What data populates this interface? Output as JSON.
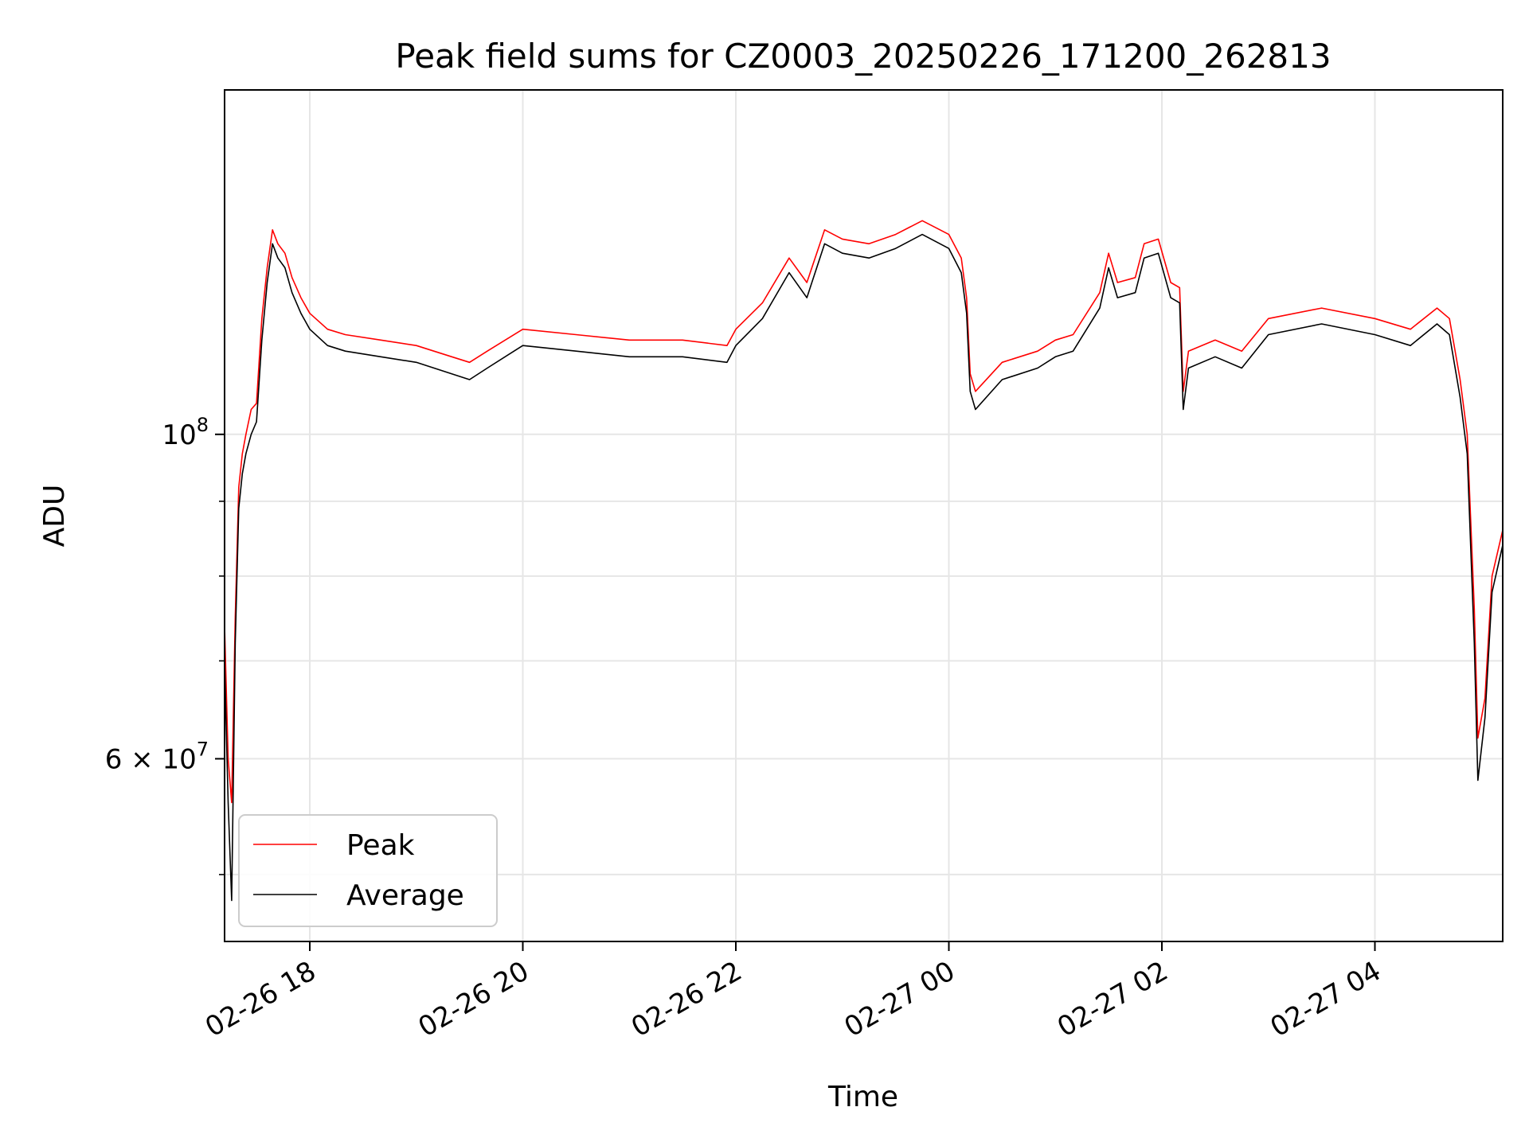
{
  "chart_data": {
    "type": "line",
    "title": "Peak field sums for CZ0003_20250226_171200_262813",
    "xlabel": "Time",
    "ylabel": "ADU",
    "yscale": "log",
    "grid": true,
    "legend_position": "lower-left",
    "xlim": [
      "2025-02-26 17:12",
      "2025-02-27 05:12"
    ],
    "ylim": [
      45000000,
      172000000
    ],
    "x_ticks": [
      {
        "t": "2025-02-26 18:00",
        "label": "02-26 18"
      },
      {
        "t": "2025-02-26 20:00",
        "label": "02-26 20"
      },
      {
        "t": "2025-02-26 22:00",
        "label": "02-26 22"
      },
      {
        "t": "2025-02-27 00:00",
        "label": "02-27 00"
      },
      {
        "t": "2025-02-27 02:00",
        "label": "02-27 02"
      },
      {
        "t": "2025-02-27 04:00",
        "label": "02-27 04"
      }
    ],
    "y_major_ticks": [
      {
        "v": 60000000,
        "mantissa": "6",
        "base": "10",
        "exp": "7"
      },
      {
        "v": 100000000,
        "mantissa": "",
        "base": "10",
        "exp": "8"
      }
    ],
    "y_minor_ticks": [
      50000000,
      70000000,
      80000000,
      90000000
    ],
    "series": [
      {
        "name": "Peak",
        "color": "#ff0000",
        "points": [
          [
            "2025-02-26 17:12",
            74000000
          ],
          [
            "2025-02-26 17:14",
            60000000
          ],
          [
            "2025-02-26 17:16",
            56000000
          ],
          [
            "2025-02-26 17:18",
            75000000
          ],
          [
            "2025-02-26 17:20",
            92000000
          ],
          [
            "2025-02-26 17:22",
            97000000
          ],
          [
            "2025-02-26 17:24",
            100000000
          ],
          [
            "2025-02-26 17:27",
            104000000
          ],
          [
            "2025-02-26 17:30",
            105000000
          ],
          [
            "2025-02-26 17:33",
            120000000
          ],
          [
            "2025-02-26 17:36",
            130000000
          ],
          [
            "2025-02-26 17:39",
            138000000
          ],
          [
            "2025-02-26 17:42",
            135000000
          ],
          [
            "2025-02-26 17:46",
            133000000
          ],
          [
            "2025-02-26 17:50",
            128000000
          ],
          [
            "2025-02-26 17:55",
            124000000
          ],
          [
            "2025-02-26 18:00",
            121000000
          ],
          [
            "2025-02-26 18:10",
            118000000
          ],
          [
            "2025-02-26 18:20",
            117000000
          ],
          [
            "2025-02-26 18:40",
            116000000
          ],
          [
            "2025-02-26 19:00",
            115000000
          ],
          [
            "2025-02-26 19:20",
            113000000
          ],
          [
            "2025-02-26 19:30",
            112000000
          ],
          [
            "2025-02-26 19:40",
            114000000
          ],
          [
            "2025-02-26 20:00",
            118000000
          ],
          [
            "2025-02-26 20:30",
            117000000
          ],
          [
            "2025-02-26 21:00",
            116000000
          ],
          [
            "2025-02-26 21:30",
            116000000
          ],
          [
            "2025-02-26 21:55",
            115000000
          ],
          [
            "2025-02-26 22:00",
            118000000
          ],
          [
            "2025-02-26 22:15",
            123000000
          ],
          [
            "2025-02-26 22:30",
            132000000
          ],
          [
            "2025-02-26 22:40",
            127000000
          ],
          [
            "2025-02-26 22:50",
            138000000
          ],
          [
            "2025-02-26 23:00",
            136000000
          ],
          [
            "2025-02-26 23:15",
            135000000
          ],
          [
            "2025-02-26 23:30",
            137000000
          ],
          [
            "2025-02-26 23:45",
            140000000
          ],
          [
            "2025-02-27 00:00",
            137000000
          ],
          [
            "2025-02-27 00:07",
            132000000
          ],
          [
            "2025-02-27 00:10",
            124000000
          ],
          [
            "2025-02-27 00:12",
            110000000
          ],
          [
            "2025-02-27 00:15",
            107000000
          ],
          [
            "2025-02-27 00:30",
            112000000
          ],
          [
            "2025-02-27 00:50",
            114000000
          ],
          [
            "2025-02-27 01:00",
            116000000
          ],
          [
            "2025-02-27 01:10",
            117000000
          ],
          [
            "2025-02-27 01:25",
            125000000
          ],
          [
            "2025-02-27 01:30",
            133000000
          ],
          [
            "2025-02-27 01:35",
            127000000
          ],
          [
            "2025-02-27 01:45",
            128000000
          ],
          [
            "2025-02-27 01:50",
            135000000
          ],
          [
            "2025-02-27 01:58",
            136000000
          ],
          [
            "2025-02-27 02:05",
            127000000
          ],
          [
            "2025-02-27 02:10",
            126000000
          ],
          [
            "2025-02-27 02:12",
            107000000
          ],
          [
            "2025-02-27 02:15",
            114000000
          ],
          [
            "2025-02-27 02:30",
            116000000
          ],
          [
            "2025-02-27 02:45",
            114000000
          ],
          [
            "2025-02-27 03:00",
            120000000
          ],
          [
            "2025-02-27 03:30",
            122000000
          ],
          [
            "2025-02-27 04:00",
            120000000
          ],
          [
            "2025-02-27 04:20",
            118000000
          ],
          [
            "2025-02-27 04:35",
            122000000
          ],
          [
            "2025-02-27 04:42",
            120000000
          ],
          [
            "2025-02-27 04:48",
            109000000
          ],
          [
            "2025-02-27 04:52",
            100000000
          ],
          [
            "2025-02-27 04:56",
            76000000
          ],
          [
            "2025-02-27 04:58",
            62000000
          ],
          [
            "2025-02-27 05:02",
            66000000
          ],
          [
            "2025-02-27 05:06",
            80000000
          ],
          [
            "2025-02-27 05:12",
            86000000
          ]
        ]
      },
      {
        "name": "Average",
        "color": "#000000",
        "points": [
          [
            "2025-02-26 17:12",
            70000000
          ],
          [
            "2025-02-26 17:14",
            56000000
          ],
          [
            "2025-02-26 17:16",
            48000000
          ],
          [
            "2025-02-26 17:18",
            72000000
          ],
          [
            "2025-02-26 17:20",
            89000000
          ],
          [
            "2025-02-26 17:22",
            94000000
          ],
          [
            "2025-02-26 17:24",
            97000000
          ],
          [
            "2025-02-26 17:27",
            100000000
          ],
          [
            "2025-02-26 17:30",
            102000000
          ],
          [
            "2025-02-26 17:33",
            116000000
          ],
          [
            "2025-02-26 17:36",
            127000000
          ],
          [
            "2025-02-26 17:39",
            135000000
          ],
          [
            "2025-02-26 17:42",
            132000000
          ],
          [
            "2025-02-26 17:46",
            130000000
          ],
          [
            "2025-02-26 17:50",
            125000000
          ],
          [
            "2025-02-26 17:55",
            121000000
          ],
          [
            "2025-02-26 18:00",
            118000000
          ],
          [
            "2025-02-26 18:10",
            115000000
          ],
          [
            "2025-02-26 18:20",
            114000000
          ],
          [
            "2025-02-26 18:40",
            113000000
          ],
          [
            "2025-02-26 19:00",
            112000000
          ],
          [
            "2025-02-26 19:20",
            110000000
          ],
          [
            "2025-02-26 19:30",
            109000000
          ],
          [
            "2025-02-26 19:40",
            111000000
          ],
          [
            "2025-02-26 20:00",
            115000000
          ],
          [
            "2025-02-26 20:30",
            114000000
          ],
          [
            "2025-02-26 21:00",
            113000000
          ],
          [
            "2025-02-26 21:30",
            113000000
          ],
          [
            "2025-02-26 21:55",
            112000000
          ],
          [
            "2025-02-26 22:00",
            115000000
          ],
          [
            "2025-02-26 22:15",
            120000000
          ],
          [
            "2025-02-26 22:30",
            129000000
          ],
          [
            "2025-02-26 22:40",
            124000000
          ],
          [
            "2025-02-26 22:50",
            135000000
          ],
          [
            "2025-02-26 23:00",
            133000000
          ],
          [
            "2025-02-26 23:15",
            132000000
          ],
          [
            "2025-02-26 23:30",
            134000000
          ],
          [
            "2025-02-26 23:45",
            137000000
          ],
          [
            "2025-02-27 00:00",
            134000000
          ],
          [
            "2025-02-27 00:07",
            129000000
          ],
          [
            "2025-02-27 00:10",
            121000000
          ],
          [
            "2025-02-27 00:12",
            107000000
          ],
          [
            "2025-02-27 00:15",
            104000000
          ],
          [
            "2025-02-27 00:30",
            109000000
          ],
          [
            "2025-02-27 00:50",
            111000000
          ],
          [
            "2025-02-27 01:00",
            113000000
          ],
          [
            "2025-02-27 01:10",
            114000000
          ],
          [
            "2025-02-27 01:25",
            122000000
          ],
          [
            "2025-02-27 01:30",
            130000000
          ],
          [
            "2025-02-27 01:35",
            124000000
          ],
          [
            "2025-02-27 01:45",
            125000000
          ],
          [
            "2025-02-27 01:50",
            132000000
          ],
          [
            "2025-02-27 01:58",
            133000000
          ],
          [
            "2025-02-27 02:05",
            124000000
          ],
          [
            "2025-02-27 02:10",
            123000000
          ],
          [
            "2025-02-27 02:12",
            104000000
          ],
          [
            "2025-02-27 02:15",
            111000000
          ],
          [
            "2025-02-27 02:30",
            113000000
          ],
          [
            "2025-02-27 02:45",
            111000000
          ],
          [
            "2025-02-27 03:00",
            117000000
          ],
          [
            "2025-02-27 03:30",
            119000000
          ],
          [
            "2025-02-27 04:00",
            117000000
          ],
          [
            "2025-02-27 04:20",
            115000000
          ],
          [
            "2025-02-27 04:35",
            119000000
          ],
          [
            "2025-02-27 04:42",
            117000000
          ],
          [
            "2025-02-27 04:48",
            106000000
          ],
          [
            "2025-02-27 04:52",
            97000000
          ],
          [
            "2025-02-27 04:56",
            72000000
          ],
          [
            "2025-02-27 04:58",
            58000000
          ],
          [
            "2025-02-27 05:02",
            64000000
          ],
          [
            "2025-02-27 05:06",
            78000000
          ],
          [
            "2025-02-27 05:12",
            84000000
          ]
        ]
      }
    ]
  }
}
